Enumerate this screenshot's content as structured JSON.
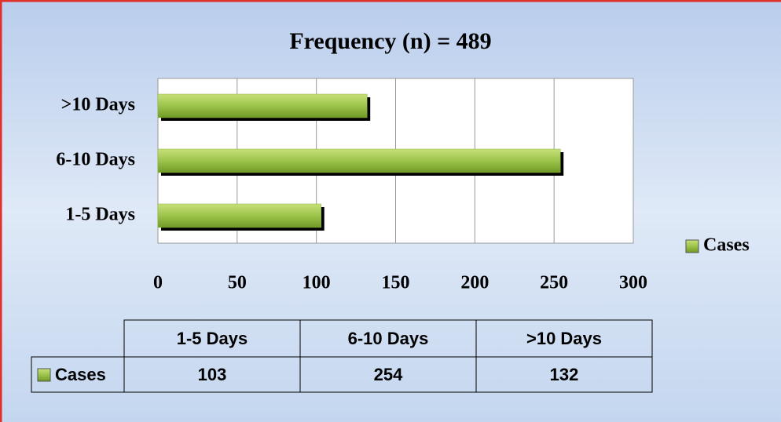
{
  "chart_data": {
    "type": "bar",
    "orientation": "horizontal",
    "title": "Frequency (n) = 489",
    "categories": [
      "1-5 Days",
      "6-10 Days",
      ">10 Days"
    ],
    "series": [
      {
        "name": "Cases",
        "color": "#8db43a",
        "values": [
          103,
          254,
          132
        ]
      }
    ],
    "xlim": [
      0,
      300
    ],
    "xticks": [
      0,
      50,
      100,
      150,
      200,
      250,
      300
    ],
    "grid": true,
    "legend": "right"
  }
}
